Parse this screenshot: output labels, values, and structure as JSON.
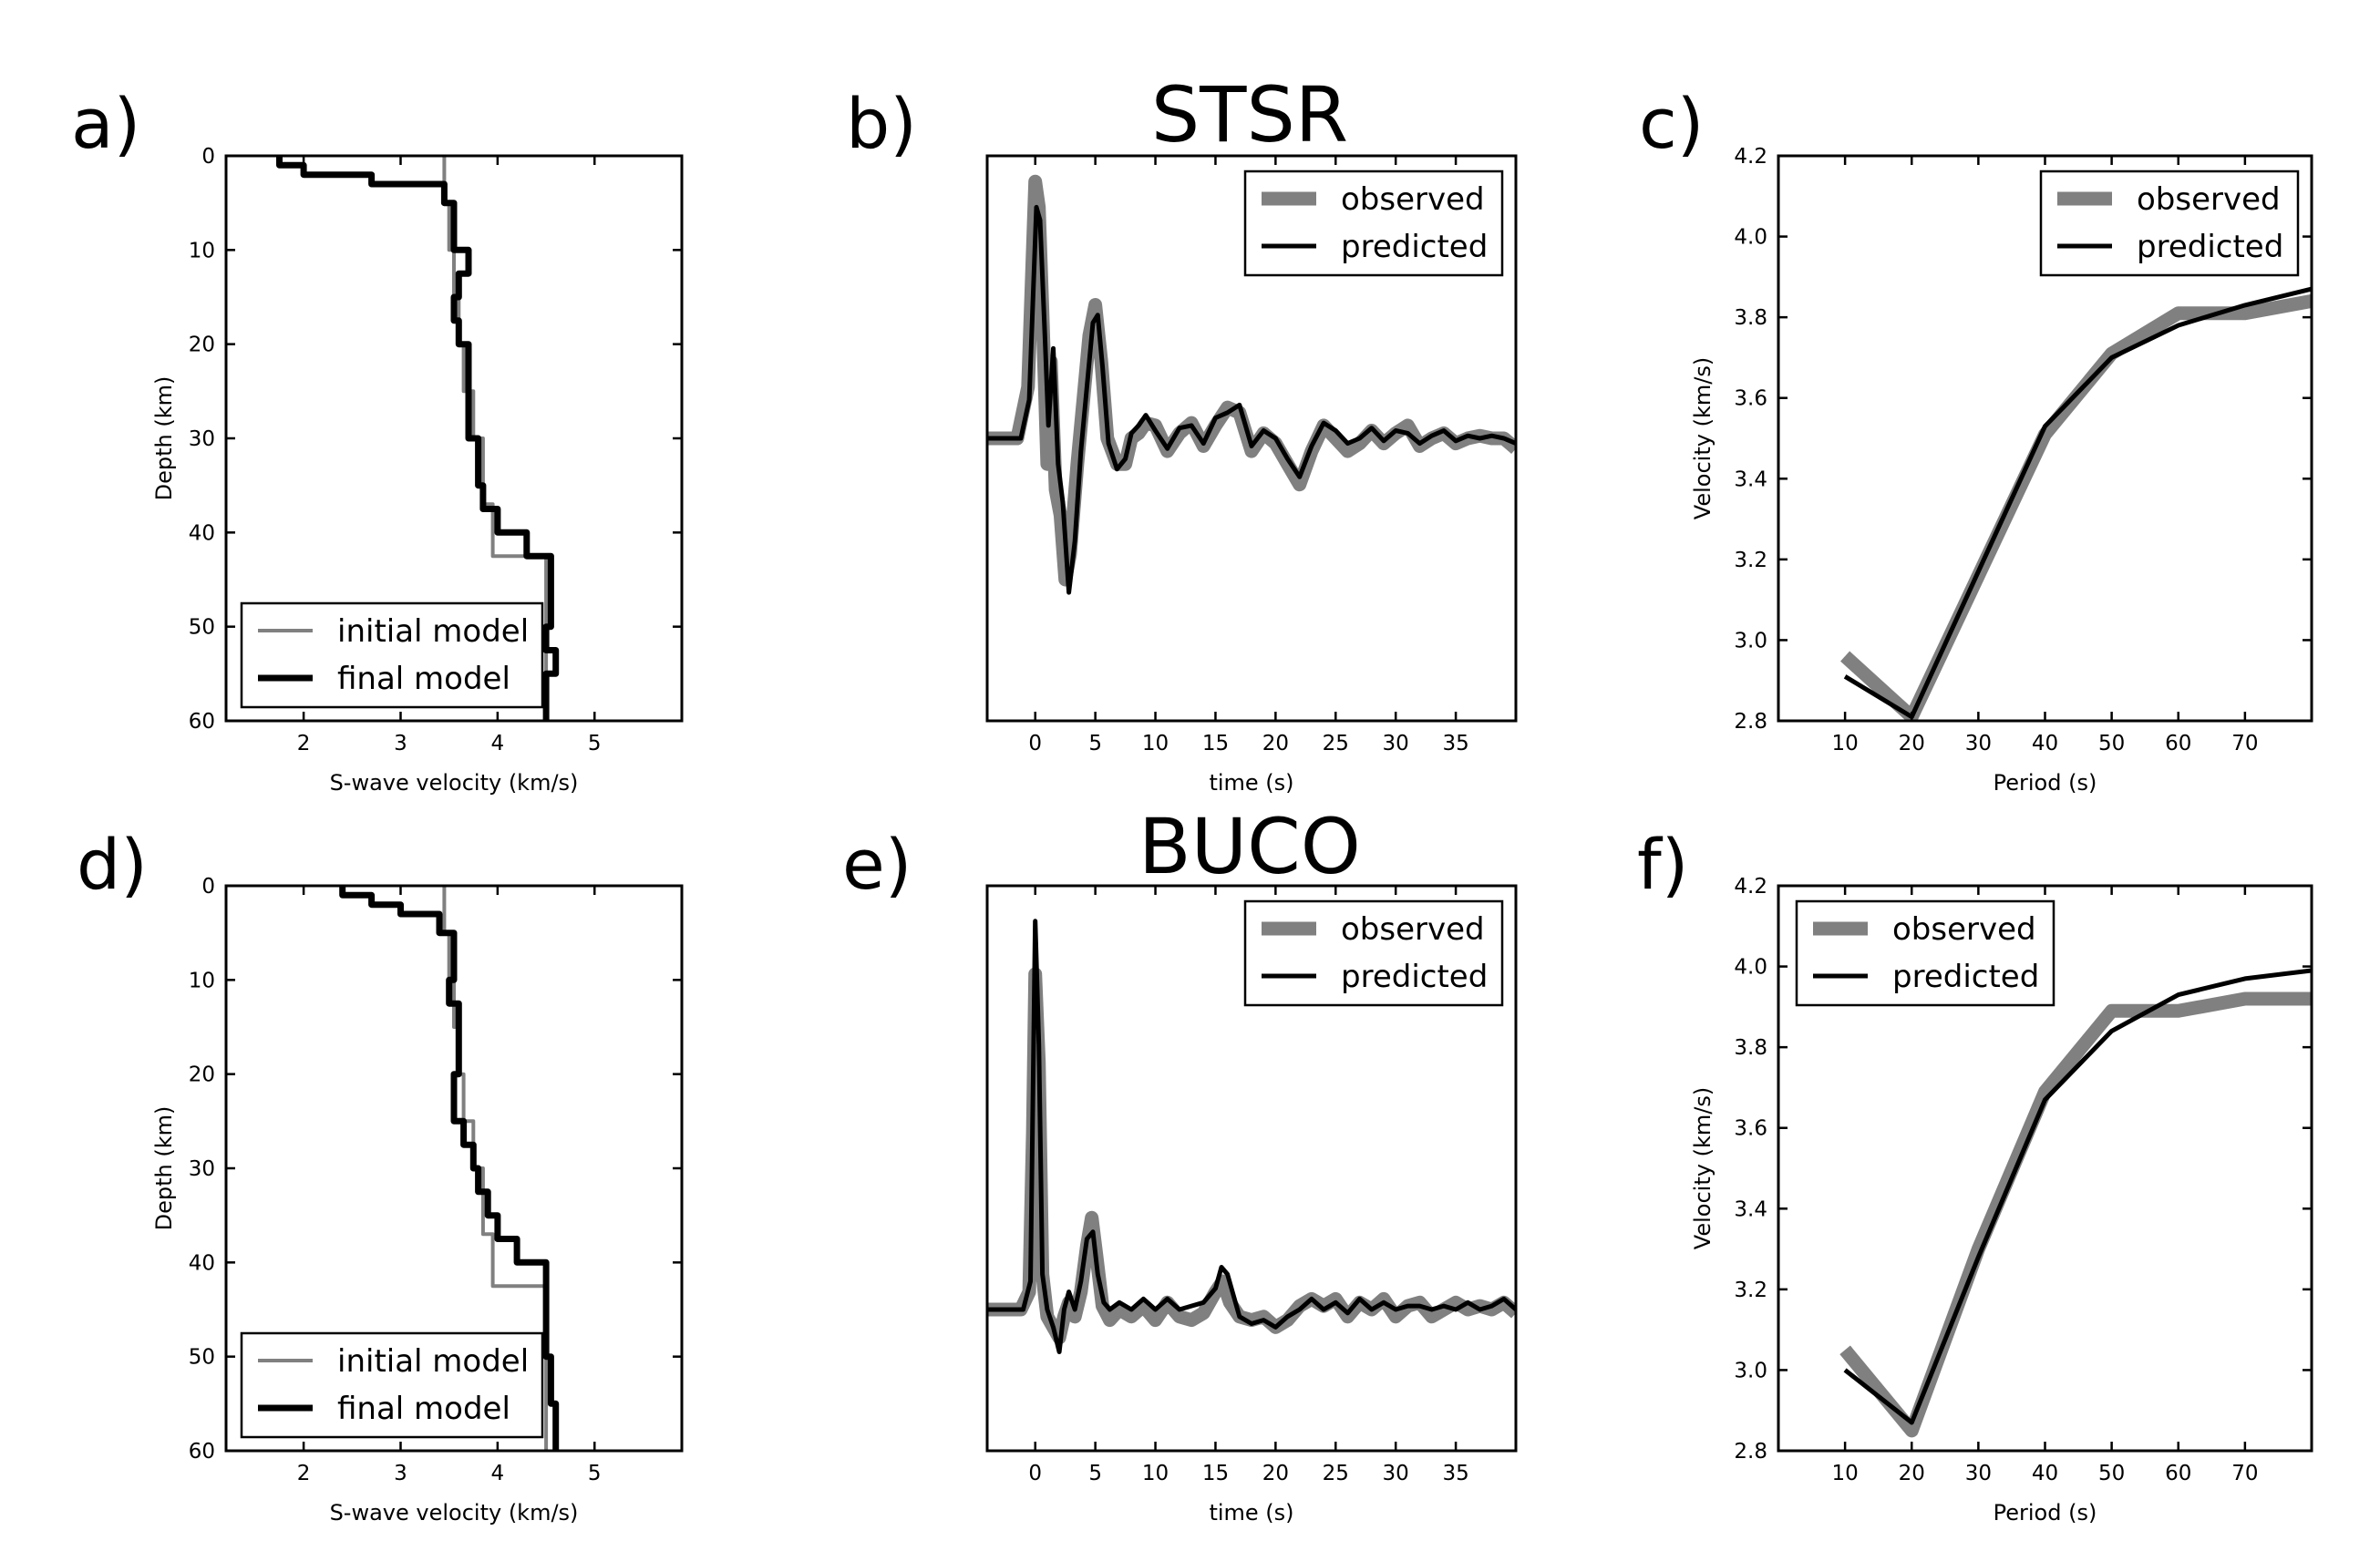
{
  "colors": {
    "observed": "#808080",
    "predicted": "#000000",
    "initial": "#808080",
    "final": "#000000"
  },
  "chart_data": [
    {
      "id": "a",
      "panel_label": "a)",
      "type": "line",
      "title": "",
      "xlabel": "S-wave velocity (km/s)",
      "ylabel": "Depth (km)",
      "xlim": [
        1.2,
        5.9
      ],
      "ylim": [
        60,
        0
      ],
      "y_inverted": true,
      "xticks": [
        "2",
        "3",
        "4",
        "5"
      ],
      "yticks": [
        "0",
        "10",
        "20",
        "30",
        "40",
        "50",
        "60"
      ],
      "legend_position": "lower-left",
      "grid": false,
      "series": [
        {
          "name": "initial model",
          "style": "initial",
          "x": [
            3.45,
            3.45,
            3.5,
            3.5,
            3.55,
            3.55,
            3.6,
            3.6,
            3.65,
            3.65,
            3.75,
            3.75,
            3.85,
            3.85,
            3.95,
            3.95,
            4.5,
            4.5
          ],
          "y": [
            0,
            5,
            5,
            10,
            10,
            15,
            15,
            20,
            20,
            25,
            25,
            30,
            30,
            37,
            37,
            42.5,
            42.5,
            60
          ]
        },
        {
          "name": "final model",
          "style": "final",
          "x": [
            1.75,
            1.75,
            2.0,
            2.0,
            2.7,
            2.7,
            3.45,
            3.45,
            3.55,
            3.55,
            3.7,
            3.7,
            3.6,
            3.6,
            3.55,
            3.55,
            3.6,
            3.6,
            3.7,
            3.7,
            3.8,
            3.8,
            3.85,
            3.85,
            4.0,
            4.0,
            4.3,
            4.3,
            4.55,
            4.55,
            4.5,
            4.5,
            4.6,
            4.6,
            4.5,
            4.5
          ],
          "y": [
            0,
            1,
            1,
            2,
            2,
            3,
            3,
            5,
            5,
            10,
            10,
            12.5,
            12.5,
            15,
            15,
            17.5,
            17.5,
            20,
            20,
            30,
            30,
            35,
            35,
            37.5,
            37.5,
            40,
            40,
            42.5,
            42.5,
            50,
            50,
            52.5,
            52.5,
            55,
            55,
            60
          ]
        }
      ]
    },
    {
      "id": "b",
      "panel_label": "b)",
      "type": "line",
      "title": "STSR",
      "xlabel": "time (s)",
      "ylabel": "",
      "xlim": [
        -4,
        40
      ],
      "ylim": [
        -1.1,
        1.1
      ],
      "xticks": [
        "0",
        "5",
        "10",
        "15",
        "20",
        "25",
        "30",
        "35"
      ],
      "yticks": [],
      "legend_position": "upper-right",
      "grid": false,
      "series": [
        {
          "name": "observed",
          "style": "observed",
          "x": [
            -4,
            -1.5,
            -0.6,
            0,
            0.3,
            0.6,
            1.0,
            1.3,
            1.7,
            2.1,
            2.5,
            2.9,
            3.5,
            4.0,
            4.5,
            5.0,
            5.5,
            6.0,
            6.8,
            7.5,
            8.0,
            8.6,
            9.2,
            10,
            11,
            12,
            13,
            14,
            15,
            16,
            17,
            18,
            19,
            20,
            21,
            22,
            23,
            24,
            25,
            26,
            27,
            28,
            29,
            30,
            31,
            32,
            33,
            34,
            35,
            36,
            37,
            38,
            39,
            40
          ],
          "y": [
            0,
            0,
            0.2,
            1.0,
            0.9,
            0.5,
            -0.1,
            0.3,
            -0.2,
            -0.3,
            -0.55,
            -0.45,
            -0.1,
            0.15,
            0.4,
            0.52,
            0.3,
            0.0,
            -0.1,
            -0.1,
            0.0,
            0.02,
            0.06,
            0.05,
            -0.05,
            0.02,
            0.06,
            -0.03,
            0.05,
            0.12,
            0.1,
            -0.05,
            0.02,
            -0.02,
            -0.1,
            -0.18,
            -0.05,
            0.05,
            0.0,
            -0.05,
            -0.02,
            0.03,
            -0.02,
            0.02,
            0.05,
            -0.03,
            0.0,
            0.02,
            -0.02,
            0.0,
            0.01,
            0.0,
            0.0,
            -0.04
          ]
        },
        {
          "name": "predicted",
          "style": "predicted",
          "x": [
            -4,
            -1.2,
            -0.5,
            0.1,
            0.4,
            0.8,
            1.1,
            1.5,
            1.9,
            2.3,
            2.8,
            3.3,
            3.8,
            4.3,
            4.8,
            5.2,
            5.6,
            6.1,
            6.8,
            7.5,
            8.0,
            8.6,
            9.2,
            10,
            11,
            12,
            13,
            14,
            15,
            16,
            17,
            18,
            19,
            20,
            21,
            22,
            23,
            24,
            25,
            26,
            27,
            28,
            29,
            30,
            31,
            32,
            33,
            34,
            35,
            36,
            37,
            38,
            39,
            40
          ],
          "y": [
            0,
            0,
            0.15,
            0.9,
            0.85,
            0.4,
            0.05,
            0.35,
            -0.1,
            -0.25,
            -0.6,
            -0.4,
            -0.05,
            0.2,
            0.45,
            0.48,
            0.28,
            -0.02,
            -0.12,
            -0.08,
            0.02,
            0.05,
            0.09,
            0.03,
            -0.04,
            0.04,
            0.05,
            -0.02,
            0.08,
            0.1,
            0.13,
            -0.03,
            0.03,
            0.0,
            -0.08,
            -0.15,
            -0.03,
            0.06,
            0.03,
            -0.02,
            0.0,
            0.04,
            -0.01,
            0.03,
            0.02,
            -0.02,
            0.01,
            0.03,
            -0.01,
            0.01,
            0.0,
            0.01,
            0.0,
            -0.02
          ]
        }
      ]
    },
    {
      "id": "c",
      "panel_label": "c)",
      "type": "line",
      "title": "",
      "xlabel": "Period (s)",
      "ylabel": "Velocity (km/s)",
      "xlim": [
        0,
        80
      ],
      "ylim": [
        2.8,
        4.2
      ],
      "xticks": [
        "10",
        "20",
        "30",
        "40",
        "50",
        "60",
        "70"
      ],
      "yticks": [
        "2.8",
        "3.0",
        "3.2",
        "3.4",
        "3.6",
        "3.8",
        "4.0",
        "4.2"
      ],
      "legend_position": "upper-right",
      "grid": false,
      "series": [
        {
          "name": "observed",
          "style": "observed",
          "x": [
            10,
            20,
            30,
            40,
            50,
            60,
            70,
            80
          ],
          "y": [
            2.96,
            2.81,
            3.16,
            3.51,
            3.71,
            3.81,
            3.81,
            3.84
          ]
        },
        {
          "name": "predicted",
          "style": "predicted",
          "x": [
            10,
            20,
            30,
            40,
            50,
            60,
            70,
            80
          ],
          "y": [
            2.91,
            2.81,
            3.17,
            3.53,
            3.7,
            3.78,
            3.83,
            3.87
          ]
        }
      ]
    },
    {
      "id": "d",
      "panel_label": "d)",
      "type": "line",
      "title": "",
      "xlabel": "S-wave velocity (km/s)",
      "ylabel": "Depth (km)",
      "xlim": [
        1.2,
        5.9
      ],
      "ylim": [
        60,
        0
      ],
      "y_inverted": true,
      "xticks": [
        "2",
        "3",
        "4",
        "5"
      ],
      "yticks": [
        "0",
        "10",
        "20",
        "30",
        "40",
        "50",
        "60"
      ],
      "legend_position": "lower-left",
      "grid": false,
      "series": [
        {
          "name": "initial model",
          "style": "initial",
          "x": [
            3.45,
            3.45,
            3.5,
            3.5,
            3.55,
            3.55,
            3.6,
            3.6,
            3.65,
            3.65,
            3.75,
            3.75,
            3.85,
            3.85,
            3.95,
            3.95,
            4.5,
            4.5
          ],
          "y": [
            0,
            5,
            5,
            10,
            10,
            15,
            15,
            20,
            20,
            25,
            25,
            30,
            30,
            37,
            37,
            42.5,
            42.5,
            60
          ]
        },
        {
          "name": "final model",
          "style": "final",
          "x": [
            2.4,
            2.4,
            2.7,
            2.7,
            3.0,
            3.0,
            3.4,
            3.4,
            3.55,
            3.55,
            3.5,
            3.5,
            3.6,
            3.6,
            3.55,
            3.55,
            3.65,
            3.65,
            3.75,
            3.75,
            3.8,
            3.8,
            3.9,
            3.9,
            4.0,
            4.0,
            4.2,
            4.2,
            4.5,
            4.5,
            4.55,
            4.55,
            4.6,
            4.6
          ],
          "y": [
            0,
            1,
            1,
            2,
            2,
            3,
            3,
            5,
            5,
            10,
            10,
            12.5,
            12.5,
            20,
            20,
            25,
            25,
            27.5,
            27.5,
            30,
            30,
            32.5,
            32.5,
            35,
            35,
            37.5,
            37.5,
            40,
            40,
            50,
            50,
            55,
            55,
            60
          ]
        }
      ]
    },
    {
      "id": "e",
      "panel_label": "e)",
      "type": "line",
      "title": "BUCO",
      "xlabel": "time (s)",
      "ylabel": "",
      "xlim": [
        -4,
        40
      ],
      "ylim": [
        -0.4,
        1.2
      ],
      "xticks": [
        "0",
        "5",
        "10",
        "15",
        "20",
        "25",
        "30",
        "35"
      ],
      "yticks": [],
      "legend_position": "upper-right",
      "grid": false,
      "series": [
        {
          "name": "observed",
          "style": "observed",
          "x": [
            -4,
            -1.2,
            -0.5,
            -0.2,
            0,
            0.3,
            0.6,
            1.0,
            1.5,
            2.0,
            2.4,
            2.8,
            3.3,
            3.8,
            4.3,
            4.7,
            5.1,
            5.6,
            6.2,
            7.0,
            8.0,
            9.0,
            10,
            11,
            12,
            13,
            14,
            15,
            15.6,
            16.2,
            17,
            18,
            19,
            20,
            21,
            22,
            23,
            24,
            25,
            26,
            27,
            28,
            29,
            30,
            31,
            32,
            33,
            34,
            35,
            36,
            37,
            38,
            39,
            40
          ],
          "y": [
            0,
            0,
            0.05,
            0.5,
            0.95,
            0.7,
            0.1,
            -0.02,
            -0.05,
            -0.08,
            -0.02,
            0.02,
            -0.02,
            0.05,
            0.18,
            0.26,
            0.15,
            0.01,
            -0.03,
            0.0,
            -0.02,
            0.01,
            -0.03,
            0.02,
            -0.02,
            -0.03,
            -0.01,
            0.05,
            0.08,
            0.02,
            -0.02,
            -0.03,
            -0.02,
            -0.05,
            -0.03,
            0.01,
            0.03,
            0.01,
            0.03,
            -0.02,
            0.02,
            0.0,
            0.03,
            -0.02,
            0.01,
            0.02,
            -0.02,
            0.0,
            0.02,
            0.0,
            0.01,
            0.0,
            0.02,
            -0.01
          ]
        },
        {
          "name": "predicted",
          "style": "predicted",
          "x": [
            -4,
            -1.0,
            -0.4,
            0,
            0.3,
            0.6,
            1.0,
            1.5,
            2.0,
            2.4,
            2.8,
            3.3,
            3.8,
            4.3,
            4.8,
            5.2,
            5.7,
            6.2,
            7.0,
            8.0,
            9.0,
            10,
            11,
            12,
            13,
            14,
            15,
            15.5,
            16.0,
            16.5,
            17,
            18,
            19,
            20,
            21,
            22,
            23,
            24,
            25,
            26,
            27,
            28,
            29,
            30,
            31,
            32,
            33,
            34,
            35,
            36,
            37,
            38,
            39,
            40
          ],
          "y": [
            0,
            0,
            0.08,
            1.1,
            0.75,
            0.1,
            0.0,
            -0.05,
            -0.12,
            0.0,
            0.05,
            0.0,
            0.08,
            0.2,
            0.22,
            0.1,
            0.02,
            0.0,
            0.02,
            0.0,
            0.03,
            0.0,
            0.03,
            0.0,
            0.01,
            0.02,
            0.06,
            0.12,
            0.1,
            0.04,
            -0.02,
            -0.04,
            -0.03,
            -0.05,
            -0.02,
            0.0,
            0.03,
            0.0,
            0.02,
            -0.01,
            0.03,
            0.0,
            0.02,
            0.0,
            0.01,
            0.01,
            0.0,
            0.01,
            0.0,
            0.02,
            0.0,
            0.01,
            0.03,
            0.0
          ]
        }
      ]
    },
    {
      "id": "f",
      "panel_label": "f)",
      "type": "line",
      "title": "",
      "xlabel": "Period (s)",
      "ylabel": "Velocity (km/s)",
      "xlim": [
        0,
        80
      ],
      "ylim": [
        2.8,
        4.2
      ],
      "xticks": [
        "10",
        "20",
        "30",
        "40",
        "50",
        "60",
        "70"
      ],
      "yticks": [
        "2.8",
        "3.0",
        "3.2",
        "3.4",
        "3.6",
        "3.8",
        "4.0",
        "4.2"
      ],
      "legend_position": "upper-left",
      "grid": false,
      "series": [
        {
          "name": "observed",
          "style": "observed",
          "x": [
            10,
            20,
            30,
            40,
            50,
            60,
            70,
            80
          ],
          "y": [
            3.05,
            2.85,
            3.3,
            3.69,
            3.89,
            3.89,
            3.92,
            3.92
          ]
        },
        {
          "name": "predicted",
          "style": "predicted",
          "x": [
            10,
            20,
            30,
            40,
            50,
            60,
            70,
            80
          ],
          "y": [
            3.0,
            2.87,
            3.28,
            3.67,
            3.84,
            3.93,
            3.97,
            3.99
          ]
        }
      ]
    }
  ]
}
